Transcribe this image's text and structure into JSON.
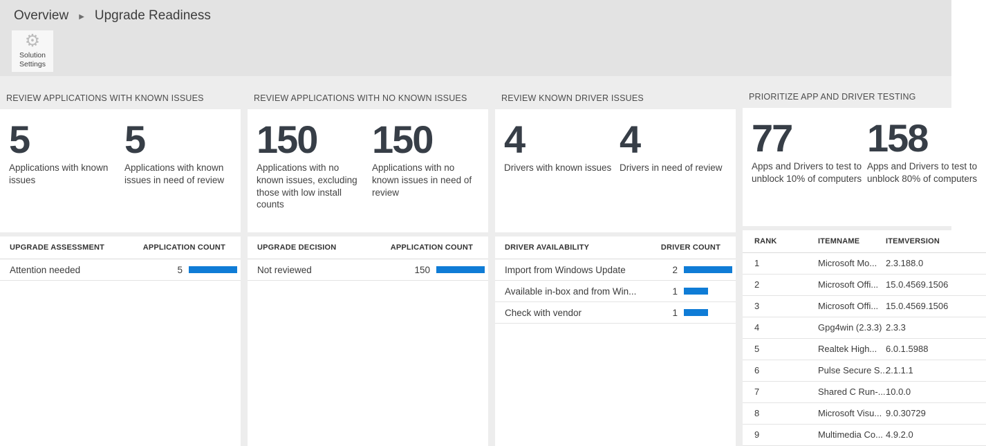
{
  "breadcrumb": {
    "items": [
      "Overview",
      "Upgrade Readiness"
    ],
    "separator": "▶"
  },
  "toolbar": {
    "solution_settings": {
      "icon": "gear-icon",
      "label_line1": "Solution",
      "label_line2": "Settings"
    }
  },
  "colors": {
    "accent_blue": "#0f7cd6",
    "number_dark": "#373e47",
    "chrome_gray": "#e3e3e3"
  },
  "panels": [
    {
      "title": "REVIEW APPLICATIONS WITH KNOWN ISSUES",
      "stats": [
        {
          "value": "5",
          "label": "Applications with known issues"
        },
        {
          "value": "5",
          "label": "Applications with known issues in need of review"
        }
      ],
      "table": {
        "columns": [
          "UPGRADE ASSESSMENT",
          "APPLICATION COUNT"
        ],
        "max_count": 5,
        "rows": [
          {
            "label": "Attention needed",
            "count": 5
          }
        ]
      }
    },
    {
      "title": "REVIEW APPLICATIONS WITH NO KNOWN ISSUES",
      "stats": [
        {
          "value": "150",
          "label": "Applications with no known issues, excluding those with low install counts"
        },
        {
          "value": "150",
          "label": "Applications with no known issues in need of review"
        }
      ],
      "table": {
        "columns": [
          "UPGRADE DECISION",
          "APPLICATION COUNT"
        ],
        "max_count": 150,
        "rows": [
          {
            "label": "Not reviewed",
            "count": 150
          }
        ]
      }
    },
    {
      "title": "REVIEW KNOWN DRIVER ISSUES",
      "stats": [
        {
          "value": "4",
          "label": "Drivers with known issues"
        },
        {
          "value": "4",
          "label": "Drivers in need of review"
        }
      ],
      "table": {
        "columns": [
          "DRIVER AVAILABILITY",
          "DRIVER COUNT"
        ],
        "max_count": 2,
        "rows": [
          {
            "label": "Import from Windows Update",
            "count": 2
          },
          {
            "label": "Available in-box and from Win...",
            "count": 1
          },
          {
            "label": "Check with vendor",
            "count": 1
          }
        ]
      }
    },
    {
      "title": "PRIORITIZE APP AND DRIVER TESTING",
      "stats": [
        {
          "value": "77",
          "label": "Apps and Drivers to test to unblock 10% of computers"
        },
        {
          "value": "158",
          "label": "Apps and Drivers to test to unblock 80% of computers"
        }
      ],
      "table": {
        "columns": [
          "RANK",
          "ITEMNAME",
          "ITEMVERSION"
        ],
        "rows": [
          {
            "rank": "1",
            "name": "Microsoft Mo...",
            "version": "2.3.188.0"
          },
          {
            "rank": "2",
            "name": "Microsoft Offi...",
            "version": "15.0.4569.1506"
          },
          {
            "rank": "3",
            "name": "Microsoft Offi...",
            "version": "15.0.4569.1506"
          },
          {
            "rank": "4",
            "name": "Gpg4win (2.3.3)",
            "version": "2.3.3"
          },
          {
            "rank": "5",
            "name": "Realtek High...",
            "version": "6.0.1.5988"
          },
          {
            "rank": "6",
            "name": "Pulse Secure S...",
            "version": "2.1.1.1"
          },
          {
            "rank": "7",
            "name": "Shared C Run-...",
            "version": "10.0.0"
          },
          {
            "rank": "8",
            "name": "Microsoft Visu...",
            "version": "9.0.30729"
          },
          {
            "rank": "9",
            "name": "Multimedia Co...",
            "version": "4.9.2.0"
          }
        ]
      }
    }
  ]
}
